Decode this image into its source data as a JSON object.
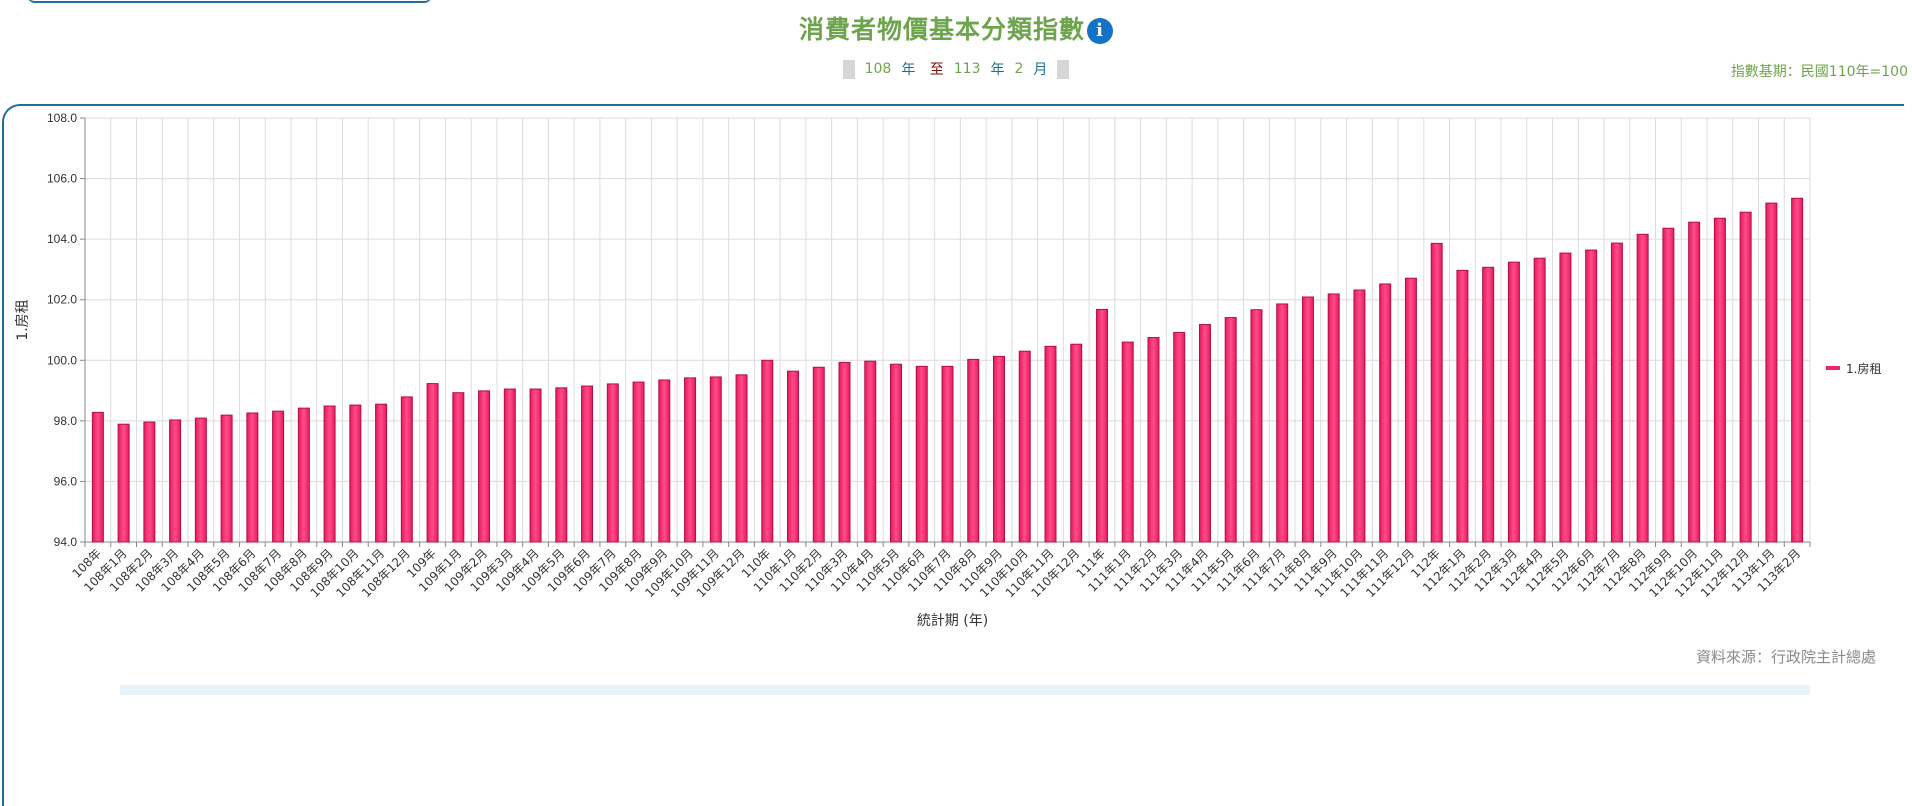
{
  "header": {
    "title": "消費者物價基本分類指數",
    "info_icon": "info-icon",
    "period": {
      "start_year": "108",
      "year_unit": "年",
      "to": "至",
      "end_year": "113",
      "end_month": "2",
      "month_unit": "月"
    },
    "base_period": "指數基期：民國110年=100"
  },
  "footer": {
    "source": "資料來源：行政院主計總處"
  },
  "colors": {
    "bar": "#f0236c",
    "bar_border": "#b0104a",
    "title": "#6fa44e",
    "frame": "#1f6f97"
  },
  "chart_data": {
    "type": "bar",
    "title": "消費者物價基本分類指數",
    "xlabel": "統計期 (年)",
    "ylabel": "1.房租",
    "ylim": [
      94.0,
      108.0
    ],
    "yticks": [
      "94.0",
      "96.0",
      "98.0",
      "100.0",
      "102.0",
      "104.0",
      "106.0",
      "108.0"
    ],
    "grid": true,
    "legend_position": "right",
    "categories": [
      "108年",
      "108年1月",
      "108年2月",
      "108年3月",
      "108年4月",
      "108年5月",
      "108年6月",
      "108年7月",
      "108年8月",
      "108年9月",
      "108年10月",
      "108年11月",
      "108年12月",
      "109年",
      "109年1月",
      "109年2月",
      "109年3月",
      "109年4月",
      "109年5月",
      "109年6月",
      "109年7月",
      "109年8月",
      "109年9月",
      "109年10月",
      "109年11月",
      "109年12月",
      "110年",
      "110年1月",
      "110年2月",
      "110年3月",
      "110年4月",
      "110年5月",
      "110年6月",
      "110年7月",
      "110年8月",
      "110年9月",
      "110年10月",
      "110年11月",
      "110年12月",
      "111年",
      "111年1月",
      "111年2月",
      "111年3月",
      "111年4月",
      "111年5月",
      "111年6月",
      "111年7月",
      "111年8月",
      "111年9月",
      "111年10月",
      "111年11月",
      "111年12月",
      "112年",
      "112年1月",
      "112年2月",
      "112年3月",
      "112年4月",
      "112年5月",
      "112年6月",
      "112年7月",
      "112年8月",
      "112年9月",
      "112年10月",
      "112年11月",
      "112年12月",
      "113年1月",
      "113年2月"
    ],
    "series": [
      {
        "name": "1.房租",
        "values": [
          98.28,
          97.89,
          97.96,
          98.03,
          98.09,
          98.19,
          98.26,
          98.32,
          98.42,
          98.49,
          98.52,
          98.55,
          98.79,
          99.23,
          98.93,
          98.99,
          99.05,
          99.05,
          99.09,
          99.15,
          99.22,
          99.28,
          99.35,
          99.42,
          99.45,
          99.52,
          100.0,
          99.64,
          99.77,
          99.93,
          99.97,
          99.87,
          99.8,
          99.8,
          100.03,
          100.13,
          100.3,
          100.46,
          100.53,
          101.68,
          100.6,
          100.75,
          100.92,
          101.18,
          101.41,
          101.67,
          101.86,
          102.09,
          102.19,
          102.32,
          102.52,
          102.71,
          103.86,
          102.97,
          103.07,
          103.24,
          103.37,
          103.54,
          103.64,
          103.87,
          104.16,
          104.36,
          104.56,
          104.69,
          104.89,
          105.19,
          105.35
        ]
      }
    ]
  }
}
